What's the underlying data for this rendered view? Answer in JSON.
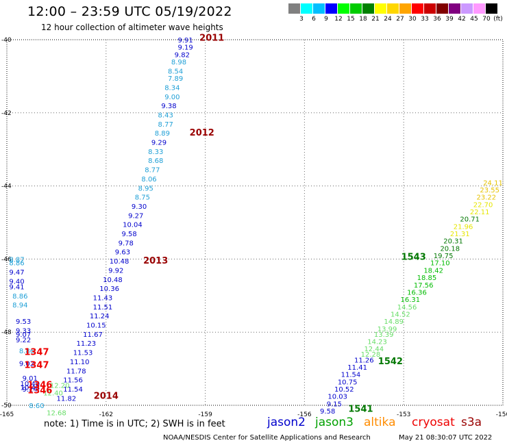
{
  "title": "12:00 – 23:59 UTC 05/19/2022",
  "subtitle": "12 hour collection of altimeter wave heights",
  "note": "note:  1) Time is in UTC; 2) SWH is in feet",
  "footer": {
    "left": "NOAA/NESDIS Center for Satellite Applications and Research",
    "right": "May 21 08:30:07 UTC 2022"
  },
  "satellites": [
    {
      "name": "jason2",
      "color": "#0000cc"
    },
    {
      "name": "jason3",
      "color": "#00a000"
    },
    {
      "name": "altika",
      "color": "#ff8c00"
    },
    {
      "name": "cryosat",
      "color": "#ee0000"
    },
    {
      "name": "s3a",
      "color": "#990000"
    }
  ],
  "legend": {
    "unit": "(ft)",
    "bins": [
      {
        "label": "3",
        "color": "#808080"
      },
      {
        "label": "6",
        "color": "#00ffff"
      },
      {
        "label": "9",
        "color": "#00bfff"
      },
      {
        "label": "12",
        "color": "#0000ff"
      },
      {
        "label": "15",
        "color": "#00ff00"
      },
      {
        "label": "18",
        "color": "#00cc00"
      },
      {
        "label": "21",
        "color": "#008000"
      },
      {
        "label": "24",
        "color": "#ffff00"
      },
      {
        "label": "27",
        "color": "#ffd700"
      },
      {
        "label": "30",
        "color": "#ffa500"
      },
      {
        "label": "33",
        "color": "#ff0000"
      },
      {
        "label": "36",
        "color": "#cc0000"
      },
      {
        "label": "39",
        "color": "#800000"
      },
      {
        "label": "42",
        "color": "#800080"
      },
      {
        "label": "45",
        "color": "#cc99ff"
      },
      {
        "label": "70",
        "color": "#ff99ff"
      },
      {
        "label": "",
        "color": "#000000"
      }
    ]
  },
  "chart_data": {
    "type": "scatter",
    "title": "12:00 – 23:59 UTC 05/19/2022",
    "subtitle": "12 hour collection of altimeter wave heights",
    "xlim": [
      -165,
      -150
    ],
    "ylim": [
      -50,
      -40
    ],
    "xticks": [
      "-165",
      "-162",
      "-159",
      "-156",
      "-153",
      "-150"
    ],
    "yticks": [
      "-40",
      "-42",
      "-44",
      "-46",
      "-48",
      "-50"
    ],
    "grid": true,
    "points": [
      {
        "x": -159.6,
        "y": -40.0,
        "v": "9.91",
        "c": "#0000cc"
      },
      {
        "x": -159.6,
        "y": -40.2,
        "v": "9.19",
        "c": "#0000cc"
      },
      {
        "x": -159.7,
        "y": -40.4,
        "v": "9.82",
        "c": "#0000cc"
      },
      {
        "x": -159.8,
        "y": -40.6,
        "v": "8.98",
        "c": "#1e9fd6"
      },
      {
        "x": -159.9,
        "y": -40.85,
        "v": "8.54",
        "c": "#1e9fd6"
      },
      {
        "x": -159.9,
        "y": -41.05,
        "v": "7.89",
        "c": "#1e9fd6"
      },
      {
        "x": -160.0,
        "y": -41.3,
        "v": "8.34",
        "c": "#1e9fd6"
      },
      {
        "x": -160.0,
        "y": -41.55,
        "v": "9.00",
        "c": "#1e9fd6"
      },
      {
        "x": -160.1,
        "y": -41.8,
        "v": "9.38",
        "c": "#0000cc"
      },
      {
        "x": -160.2,
        "y": -42.05,
        "v": "8.43",
        "c": "#1e9fd6"
      },
      {
        "x": -160.2,
        "y": -42.3,
        "v": "8.77",
        "c": "#1e9fd6"
      },
      {
        "x": -160.3,
        "y": -42.55,
        "v": "8.89",
        "c": "#1e9fd6"
      },
      {
        "x": -160.4,
        "y": -42.8,
        "v": "9.29",
        "c": "#0000cc"
      },
      {
        "x": -160.5,
        "y": -43.05,
        "v": "8.33",
        "c": "#1e9fd6"
      },
      {
        "x": -160.5,
        "y": -43.3,
        "v": "8.68",
        "c": "#1e9fd6"
      },
      {
        "x": -160.6,
        "y": -43.55,
        "v": "8.77",
        "c": "#1e9fd6"
      },
      {
        "x": -160.7,
        "y": -43.8,
        "v": "8.06",
        "c": "#1e9fd6"
      },
      {
        "x": -160.8,
        "y": -44.05,
        "v": "8.95",
        "c": "#1e9fd6"
      },
      {
        "x": -160.9,
        "y": -44.3,
        "v": "8.75",
        "c": "#1e9fd6"
      },
      {
        "x": -161.0,
        "y": -44.55,
        "v": "9.30",
        "c": "#0000cc"
      },
      {
        "x": -161.1,
        "y": -44.8,
        "v": "9.27",
        "c": "#0000cc"
      },
      {
        "x": -161.2,
        "y": -45.05,
        "v": "10.04",
        "c": "#0000cc"
      },
      {
        "x": -161.3,
        "y": -45.3,
        "v": "9.58",
        "c": "#0000cc"
      },
      {
        "x": -161.4,
        "y": -45.55,
        "v": "9.78",
        "c": "#0000cc"
      },
      {
        "x": -161.5,
        "y": -45.8,
        "v": "9.63",
        "c": "#0000cc"
      },
      {
        "x": -161.6,
        "y": -46.05,
        "v": "10.48",
        "c": "#0000cc"
      },
      {
        "x": -161.7,
        "y": -46.3,
        "v": "9.92",
        "c": "#0000cc"
      },
      {
        "x": -161.8,
        "y": -46.55,
        "v": "10.48",
        "c": "#0000cc"
      },
      {
        "x": -161.9,
        "y": -46.8,
        "v": "10.36",
        "c": "#0000cc"
      },
      {
        "x": -162.1,
        "y": -47.05,
        "v": "11.43",
        "c": "#0000cc"
      },
      {
        "x": -162.1,
        "y": -47.3,
        "v": "11.51",
        "c": "#0000cc"
      },
      {
        "x": -162.2,
        "y": -47.55,
        "v": "11.24",
        "c": "#0000cc"
      },
      {
        "x": -162.3,
        "y": -47.8,
        "v": "10.15",
        "c": "#0000cc"
      },
      {
        "x": -162.4,
        "y": -48.05,
        "v": "11.67",
        "c": "#0000cc"
      },
      {
        "x": -162.6,
        "y": -48.3,
        "v": "11.23",
        "c": "#0000cc"
      },
      {
        "x": -162.7,
        "y": -48.55,
        "v": "11.53",
        "c": "#0000cc"
      },
      {
        "x": -162.8,
        "y": -48.8,
        "v": "11.10",
        "c": "#0000cc"
      },
      {
        "x": -162.9,
        "y": -49.05,
        "v": "11.78",
        "c": "#0000cc"
      },
      {
        "x": -163.0,
        "y": -49.3,
        "v": "11.56",
        "c": "#0000cc"
      },
      {
        "x": -163.0,
        "y": -49.55,
        "v": "11.54",
        "c": "#0000cc"
      },
      {
        "x": -163.2,
        "y": -49.8,
        "v": "11.82",
        "c": "#0000cc"
      },
      {
        "x": -164.7,
        "y": -46.0,
        "v": "8.87",
        "c": "#1e9fd6"
      },
      {
        "x": -164.7,
        "y": -46.1,
        "v": "8.86",
        "c": "#1e9fd6"
      },
      {
        "x": -164.7,
        "y": -46.35,
        "v": "9.47",
        "c": "#0000cc"
      },
      {
        "x": -164.7,
        "y": -46.6,
        "v": "9.40",
        "c": "#0000cc"
      },
      {
        "x": -164.7,
        "y": -46.75,
        "v": "9.41",
        "c": "#0000cc"
      },
      {
        "x": -164.6,
        "y": -47.0,
        "v": "8.86",
        "c": "#1e9fd6"
      },
      {
        "x": -164.6,
        "y": -47.25,
        "v": "8.94",
        "c": "#1e9fd6"
      },
      {
        "x": -164.5,
        "y": -47.7,
        "v": "9.53",
        "c": "#0000cc"
      },
      {
        "x": -164.5,
        "y": -47.95,
        "v": "9.33",
        "c": "#0000cc"
      },
      {
        "x": -164.5,
        "y": -48.05,
        "v": "9.07",
        "c": "#0000cc"
      },
      {
        "x": -164.5,
        "y": -48.2,
        "v": "9.22",
        "c": "#0000cc"
      },
      {
        "x": -164.4,
        "y": -48.5,
        "v": "8.86",
        "c": "#1e9fd6"
      },
      {
        "x": -164.4,
        "y": -48.85,
        "v": "9.02",
        "c": "#0000cc"
      },
      {
        "x": -164.3,
        "y": -49.25,
        "v": "9.01",
        "c": "#0000cc"
      },
      {
        "x": -164.3,
        "y": -49.5,
        "v": "10.48",
        "c": "#0000cc"
      },
      {
        "x": -164.3,
        "y": -49.4,
        "v": "10.40",
        "c": "#0000cc"
      },
      {
        "x": -164.3,
        "y": -49.55,
        "v": "9.24",
        "c": "#0000cc"
      },
      {
        "x": -164.1,
        "y": -50.0,
        "v": "8.60",
        "c": "#1e9fd6"
      },
      {
        "x": -163.6,
        "y": -49.65,
        "v": "12.40",
        "c": "#66dd66"
      },
      {
        "x": -163.4,
        "y": -49.45,
        "v": "12.20",
        "c": "#66dd66"
      },
      {
        "x": -163.5,
        "y": -50.2,
        "v": "12.68",
        "c": "#66dd66"
      },
      {
        "x": -155.3,
        "y": -50.15,
        "v": "9.58",
        "c": "#0000cc"
      },
      {
        "x": -155.1,
        "y": -49.95,
        "v": "9.15",
        "c": "#0000cc"
      },
      {
        "x": -155.0,
        "y": -49.75,
        "v": "10.03",
        "c": "#0000cc"
      },
      {
        "x": -154.8,
        "y": -49.55,
        "v": "10.52",
        "c": "#0000cc"
      },
      {
        "x": -154.7,
        "y": -49.35,
        "v": "10.75",
        "c": "#0000cc"
      },
      {
        "x": -154.6,
        "y": -49.15,
        "v": "11.54",
        "c": "#0000cc"
      },
      {
        "x": -154.4,
        "y": -48.95,
        "v": "11.41",
        "c": "#0000cc"
      },
      {
        "x": -154.2,
        "y": -48.75,
        "v": "11.26",
        "c": "#0000cc"
      },
      {
        "x": -154.0,
        "y": -48.6,
        "v": "12.28",
        "c": "#66dd66"
      },
      {
        "x": -153.9,
        "y": -48.45,
        "v": "12.44",
        "c": "#66dd66"
      },
      {
        "x": -153.8,
        "y": -48.25,
        "v": "14.23",
        "c": "#66dd66"
      },
      {
        "x": -153.6,
        "y": -48.05,
        "v": "13.39",
        "c": "#66dd66"
      },
      {
        "x": -153.5,
        "y": -47.9,
        "v": "13.99",
        "c": "#66dd66"
      },
      {
        "x": -153.3,
        "y": -47.7,
        "v": "14.89",
        "c": "#66dd66"
      },
      {
        "x": -153.1,
        "y": -47.5,
        "v": "14.52",
        "c": "#66dd66"
      },
      {
        "x": -152.9,
        "y": -47.3,
        "v": "14.56",
        "c": "#66dd66"
      },
      {
        "x": -152.8,
        "y": -47.1,
        "v": "16.31",
        "c": "#00bb00"
      },
      {
        "x": -152.6,
        "y": -46.9,
        "v": "16.36",
        "c": "#00bb00"
      },
      {
        "x": -152.4,
        "y": -46.7,
        "v": "17.56",
        "c": "#00bb00"
      },
      {
        "x": -152.3,
        "y": -46.5,
        "v": "18.85",
        "c": "#00bb00"
      },
      {
        "x": -152.1,
        "y": -46.3,
        "v": "18.42",
        "c": "#00bb00"
      },
      {
        "x": -151.9,
        "y": -46.1,
        "v": "17.10",
        "c": "#00bb00"
      },
      {
        "x": -151.8,
        "y": -45.9,
        "v": "19.75",
        "c": "#007700"
      },
      {
        "x": -151.6,
        "y": -45.7,
        "v": "20.18",
        "c": "#007700"
      },
      {
        "x": -151.5,
        "y": -45.5,
        "v": "20.31",
        "c": "#007700"
      },
      {
        "x": -151.3,
        "y": -45.3,
        "v": "21.31",
        "c": "#e6e600"
      },
      {
        "x": -151.2,
        "y": -45.1,
        "v": "21.96",
        "c": "#e6e600"
      },
      {
        "x": -151.0,
        "y": -44.9,
        "v": "20.71",
        "c": "#007700"
      },
      {
        "x": -150.7,
        "y": -44.7,
        "v": "22.11",
        "c": "#e6e600"
      },
      {
        "x": -150.6,
        "y": -44.5,
        "v": "22.70",
        "c": "#e6e600"
      },
      {
        "x": -150.5,
        "y": -44.3,
        "v": "23.22",
        "c": "#e6c200"
      },
      {
        "x": -150.4,
        "y": -44.1,
        "v": "23.55",
        "c": "#e6c200"
      },
      {
        "x": -150.3,
        "y": -43.9,
        "v": "24.11",
        "c": "#e6c200"
      }
    ],
    "time_labels": [
      {
        "x": -158.8,
        "y": -39.95,
        "v": "2011",
        "c": "#990000"
      },
      {
        "x": -159.1,
        "y": -42.55,
        "v": "2012",
        "c": "#990000"
      },
      {
        "x": -160.5,
        "y": -46.05,
        "v": "2013",
        "c": "#990000"
      },
      {
        "x": -162.0,
        "y": -49.75,
        "v": "2014",
        "c": "#990000"
      },
      {
        "x": -164.1,
        "y": -48.55,
        "v": "1347",
        "c": "#ee0000"
      },
      {
        "x": -164.1,
        "y": -48.9,
        "v": "1347",
        "c": "#ee0000"
      },
      {
        "x": -164.0,
        "y": -49.45,
        "v": "1346",
        "c": "#ee0000"
      },
      {
        "x": -164.0,
        "y": -49.6,
        "v": "1346",
        "c": "#ee0000"
      },
      {
        "x": -152.7,
        "y": -45.95,
        "v": "1543",
        "c": "#007700"
      },
      {
        "x": -153.4,
        "y": -48.8,
        "v": "1542",
        "c": "#007700"
      },
      {
        "x": -154.3,
        "y": -50.1,
        "v": "1541",
        "c": "#007700"
      }
    ]
  }
}
